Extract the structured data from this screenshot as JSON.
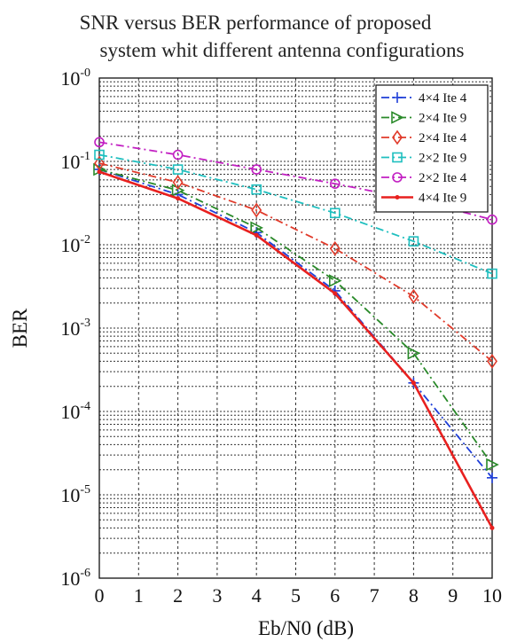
{
  "chart_data": {
    "type": "line",
    "title": "SNR versus BER performance of proposed system whit different antenna configurations",
    "title_lines": [
      "SNR versus BER performance of proposed",
      "system whit different antenna configurations"
    ],
    "xlabel": "Eb/N0 (dB)",
    "ylabel": "BER",
    "xlim": [
      0,
      10
    ],
    "ylim": [
      1e-06,
      1
    ],
    "yscale": "log",
    "grid": true,
    "grid_style": "dotted",
    "legend_position": "top-right",
    "x_ticks": [
      "0",
      "1",
      "2",
      "3",
      "4",
      "5",
      "6",
      "7",
      "8",
      "9",
      "10"
    ],
    "y_ticks": [
      {
        "base": "10",
        "exp": "-0"
      },
      {
        "base": "10",
        "exp": "-1"
      },
      {
        "base": "10",
        "exp": "-2"
      },
      {
        "base": "10",
        "exp": "-3"
      },
      {
        "base": "10",
        "exp": "-4"
      },
      {
        "base": "10",
        "exp": "-5"
      },
      {
        "base": "10",
        "exp": "-6"
      }
    ],
    "series": [
      {
        "name": "4×4 Ite 4",
        "color": "#1f3fd8",
        "line": "dashdot",
        "marker": "plus",
        "x": [
          0,
          2,
          4,
          6,
          8,
          10
        ],
        "y": [
          0.08,
          0.04,
          0.014,
          0.0028,
          0.00022,
          1.6e-05
        ]
      },
      {
        "name": "2×4 Ite 9",
        "color": "#2a8a2a",
        "line": "dashdot",
        "marker": "triangle-right",
        "x": [
          0,
          2,
          4,
          6,
          8,
          10
        ],
        "y": [
          0.08,
          0.045,
          0.016,
          0.0037,
          0.0005,
          2.3e-05
        ]
      },
      {
        "name": "2×4 Ite 4",
        "color": "#e03a2a",
        "line": "dashdot",
        "marker": "diamond",
        "x": [
          0,
          2,
          4,
          6,
          8,
          10
        ],
        "y": [
          0.095,
          0.056,
          0.026,
          0.009,
          0.0024,
          0.0004
        ]
      },
      {
        "name": "2×2 Ite 9",
        "color": "#1fbfbf",
        "line": "dashdot",
        "marker": "square",
        "x": [
          0,
          2,
          4,
          6,
          8,
          10
        ],
        "y": [
          0.12,
          0.08,
          0.046,
          0.024,
          0.011,
          0.0045
        ]
      },
      {
        "name": "2×2 Ite 4",
        "color": "#c21fc2",
        "line": "dashdot",
        "marker": "circle",
        "x": [
          0,
          2,
          4,
          6,
          8,
          10
        ],
        "y": [
          0.17,
          0.12,
          0.08,
          0.054,
          0.035,
          0.02
        ]
      },
      {
        "name": "4×4 Ite 9",
        "color": "#e8201f",
        "line": "solid",
        "marker": "dot",
        "x": [
          0,
          2,
          4,
          6,
          8,
          10
        ],
        "y": [
          0.075,
          0.036,
          0.013,
          0.0026,
          0.00022,
          4e-06
        ]
      }
    ]
  }
}
